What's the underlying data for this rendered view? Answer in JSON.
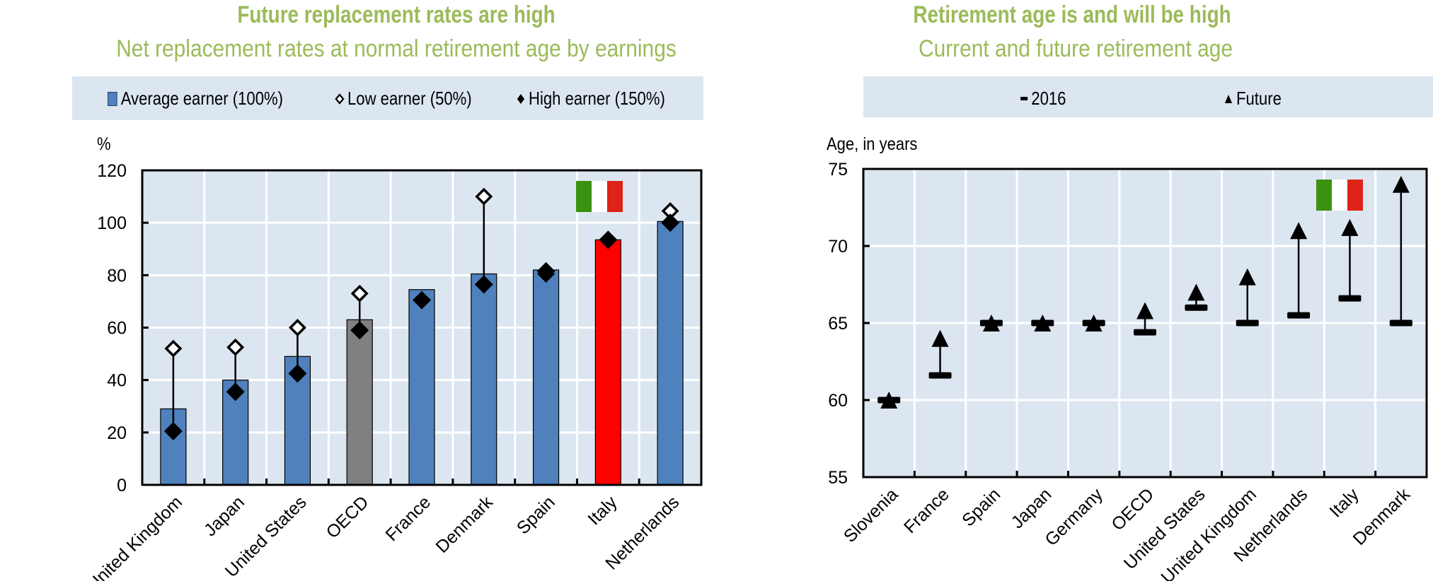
{
  "chart_data": [
    {
      "type": "bar",
      "title": "Future replacement rates are high",
      "subtitle": "Net replacement rates at normal retirement age by earnings",
      "ylabel": "%",
      "xlabel": "",
      "ylim": [
        0,
        120
      ],
      "yticks": [
        0,
        20,
        40,
        60,
        80,
        100,
        120
      ],
      "grid": true,
      "legend_position": "top",
      "legend": [
        {
          "name": "Average earner (100%)",
          "marker": "bar",
          "color": "#4f81bd"
        },
        {
          "name": "Low earner (50%)",
          "marker": "hollow-diamond"
        },
        {
          "name": "High earner (150%)",
          "marker": "filled-diamond"
        }
      ],
      "categories": [
        "United Kingdom",
        "Japan",
        "United States",
        "OECD",
        "France",
        "Denmark",
        "Spain",
        "Italy",
        "Netherlands"
      ],
      "series": [
        {
          "name": "Average earner (100%)",
          "type": "bar",
          "values": [
            29,
            40,
            49,
            63,
            74.5,
            80.5,
            82,
            93.5,
            100.5
          ]
        },
        {
          "name": "Low earner (50%)",
          "type": "marker",
          "values": [
            52,
            52.5,
            60,
            73,
            70.5,
            110,
            80.5,
            93.5,
            104.5
          ]
        },
        {
          "name": "High earner (150%)",
          "type": "marker",
          "values": [
            20.5,
            35.5,
            42.5,
            59,
            70.5,
            76.5,
            81.5,
            93.5,
            100
          ]
        }
      ],
      "bar_colors": [
        "#4f81bd",
        "#4f81bd",
        "#4f81bd",
        "#808080",
        "#4f81bd",
        "#4f81bd",
        "#4f81bd",
        "#ff0000",
        "#4f81bd"
      ],
      "highlight": {
        "category": "Italy",
        "icon": "italy-flag-icon",
        "colors": [
          "#3a9210",
          "#ffffff",
          "#de2418"
        ]
      }
    },
    {
      "type": "scatter",
      "title": "Retirement age is and will be high",
      "subtitle": "Current and future retirement age",
      "ylabel": "Age, in years",
      "xlabel": "",
      "ylim": [
        55,
        75
      ],
      "yticks": [
        55,
        60,
        65,
        70,
        75
      ],
      "grid": true,
      "legend_position": "top",
      "legend": [
        {
          "name": "2016",
          "marker": "dash"
        },
        {
          "name": "Future",
          "marker": "triangle"
        }
      ],
      "categories": [
        "Slovenia",
        "France",
        "Spain",
        "Japan",
        "Germany",
        "OECD",
        "United States",
        "United Kingdom",
        "Netherlands",
        "Italy",
        "Denmark"
      ],
      "series": [
        {
          "name": "2016",
          "values": [
            60,
            61.6,
            65,
            65,
            65,
            64.4,
            66,
            65,
            65.5,
            66.6,
            65
          ]
        },
        {
          "name": "Future",
          "values": [
            60,
            64,
            65,
            65,
            65,
            65.8,
            67,
            68,
            71,
            71.2,
            74
          ]
        }
      ],
      "highlight": {
        "category": "Italy",
        "icon": "italy-flag-icon",
        "colors": [
          "#3a9210",
          "#ffffff",
          "#de2418"
        ]
      }
    }
  ]
}
